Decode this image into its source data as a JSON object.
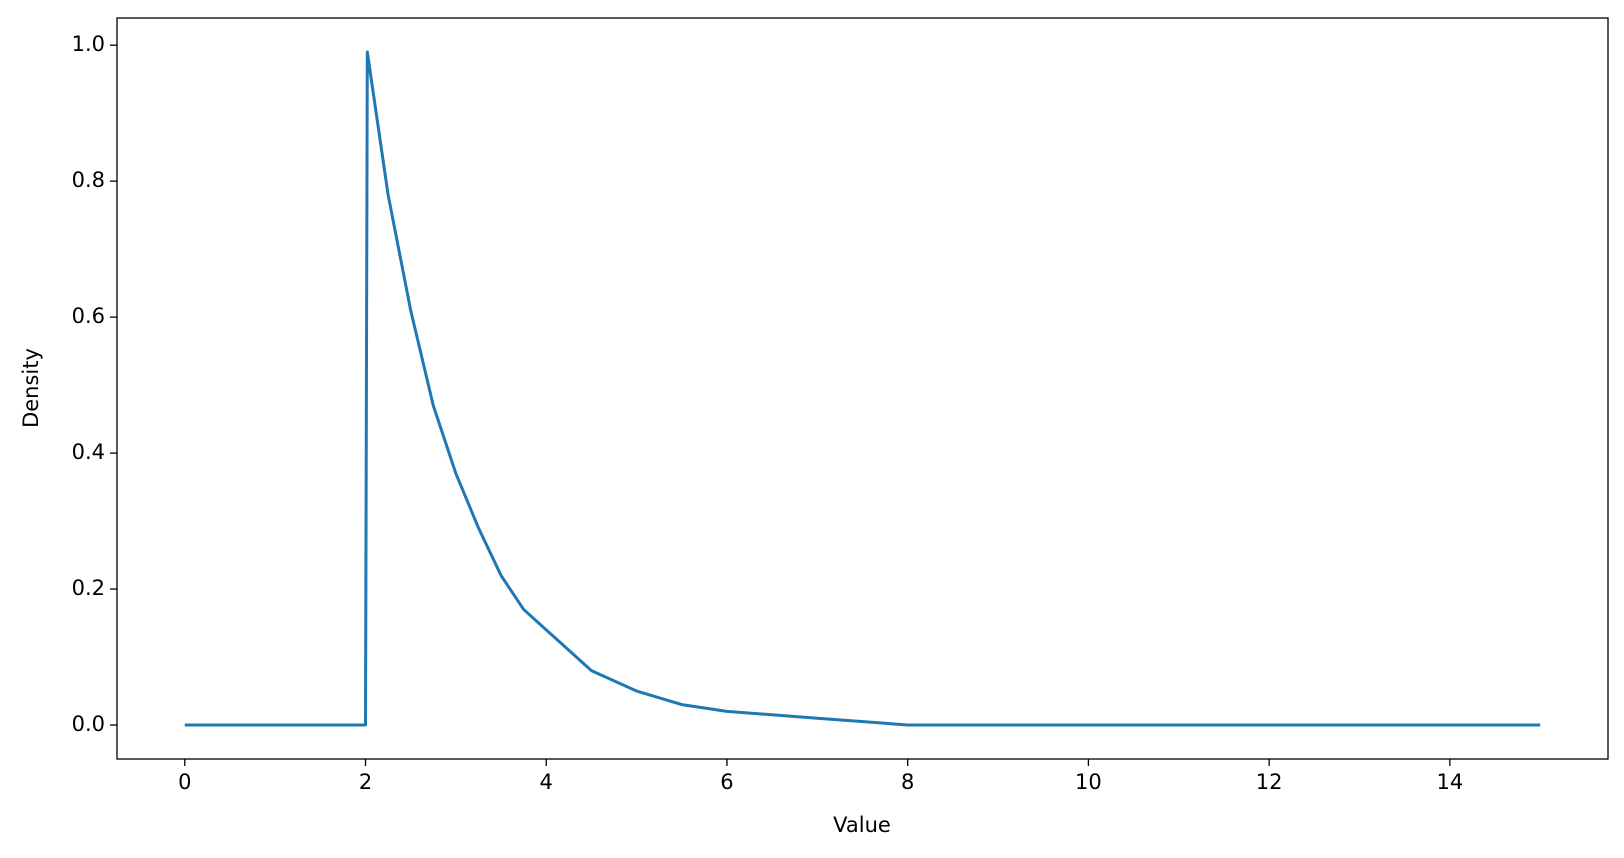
{
  "chart_data": {
    "type": "line",
    "xlabel": "Value",
    "ylabel": "Density",
    "x": [
      0,
      2,
      2.02,
      2.25,
      2.5,
      2.75,
      3,
      3.25,
      3.5,
      3.75,
      4,
      4.5,
      5,
      5.5,
      6,
      7,
      8,
      9,
      10,
      12,
      15
    ],
    "series": [
      {
        "name": "Density",
        "color": "#1f77b4",
        "values": [
          0,
          0,
          0.99,
          0.78,
          0.61,
          0.47,
          0.37,
          0.29,
          0.22,
          0.17,
          0.14,
          0.08,
          0.05,
          0.03,
          0.02,
          0.01,
          0.0,
          0.0,
          0.0,
          0.0,
          0.0
        ]
      }
    ],
    "xlim": [
      -0.75,
      15.75
    ],
    "xticks": [
      0,
      2,
      4,
      6,
      8,
      10,
      12,
      14
    ],
    "ylim": [
      -0.05,
      1.04
    ],
    "yticks": [
      {
        "value": 0,
        "label": "0.0"
      },
      0.2,
      0.4,
      0.6,
      0.8,
      {
        "value": 1,
        "label": "1.0"
      }
    ],
    "grid": false
  }
}
